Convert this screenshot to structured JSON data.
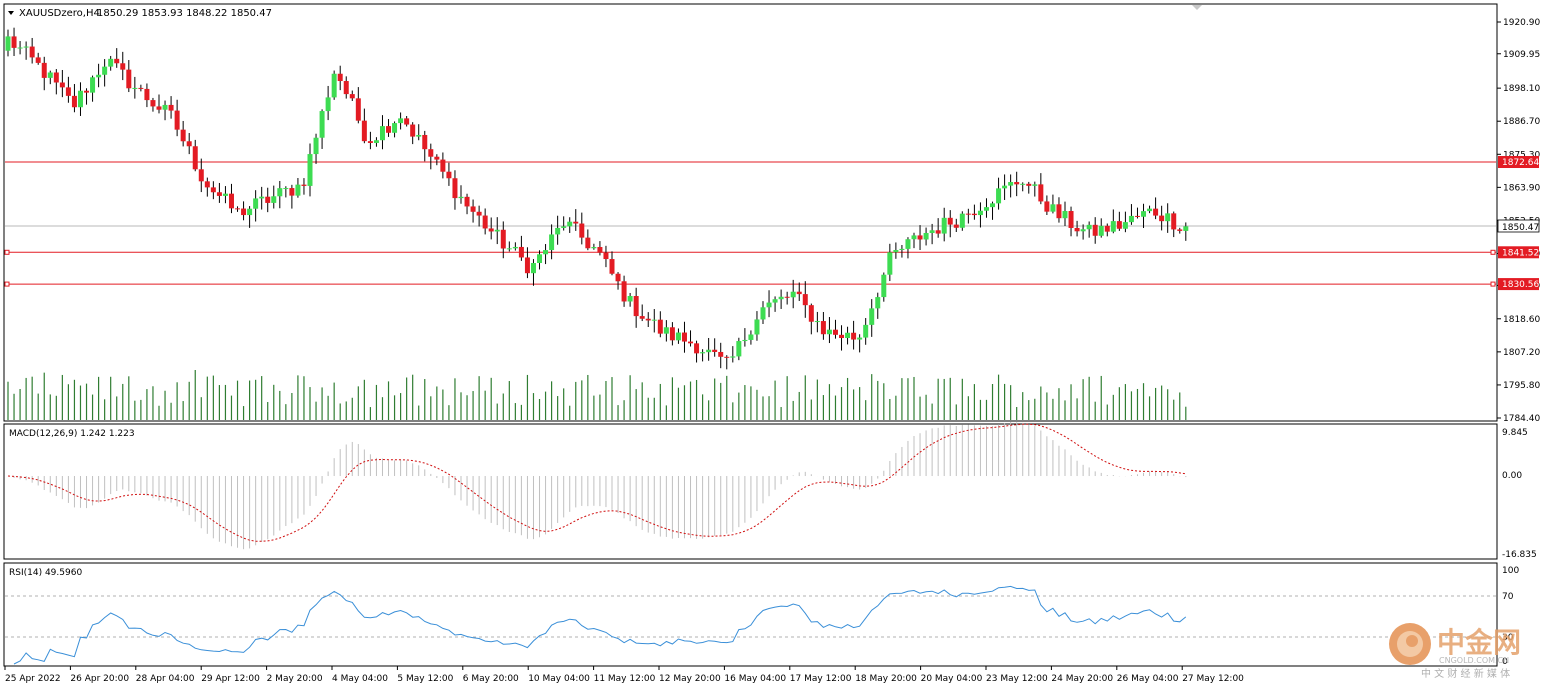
{
  "window": {
    "symbol_label": "XAUUSDzero,H4",
    "ohlc_label": "1850.29 1853.93 1848.22 1850.47",
    "menu_arrow_icon": "triangle-down-icon"
  },
  "price_axis": {
    "ticks": [
      "1920.90",
      "1909.95",
      "1898.10",
      "1886.70",
      "1875.30",
      "1863.90",
      "1852.50",
      "1841.10",
      "1830.10",
      "1818.60",
      "1807.20",
      "1795.80",
      "1784.40"
    ],
    "current_price": "1850.47",
    "levels": [
      "1872.64",
      "1841.52",
      "1830.56"
    ]
  },
  "time_axis": {
    "labels": [
      "25 Apr 2022",
      "26 Apr 20:00",
      "28 Apr 04:00",
      "29 Apr 12:00",
      "2 May 20:00",
      "4 May 04:00",
      "5 May 12:00",
      "6 May 20:00",
      "10 May 04:00",
      "11 May 12:00",
      "12 May 20:00",
      "16 May 04:00",
      "17 May 12:00",
      "18 May 20:00",
      "20 May 04:00",
      "23 May 12:00",
      "24 May 20:00",
      "26 May 04:00",
      "27 May 12:00"
    ]
  },
  "macd": {
    "label": "MACD(12,26,9) 1.242 1.223",
    "ticks": [
      "9.845",
      "0.00",
      "-16.835"
    ]
  },
  "rsi": {
    "label": "RSI(14) 49.5960",
    "ticks": [
      "100",
      "70",
      "30",
      "0"
    ]
  },
  "watermark": {
    "brand": "中金网",
    "url": "CNGOLD.COM.CN",
    "tagline": "中 文 财 经 新 媒 体"
  },
  "colors": {
    "bull": "#3ddc52",
    "bear": "#e31b23",
    "level": "#e31b23",
    "volume": "#2f7d32",
    "macd_hist": "#c0c0c0",
    "macd_signal": "#d01010",
    "rsi": "#3a8fd8"
  },
  "chart_data": [
    {
      "type": "candlestick",
      "title": "XAUUSDzero,H4",
      "ylim": [
        1784.4,
        1920.9
      ],
      "x": [
        "25 Apr 2022",
        "26 Apr 20:00",
        "28 Apr 04:00",
        "29 Apr 12:00",
        "2 May 20:00",
        "4 May 04:00",
        "5 May 12:00",
        "6 May 20:00",
        "10 May 04:00",
        "11 May 12:00",
        "12 May 20:00",
        "16 May 04:00",
        "17 May 12:00",
        "18 May 20:00",
        "20 May 04:00",
        "23 May 12:00",
        "24 May 20:00",
        "26 May 04:00",
        "27 May 12:00"
      ],
      "close_path": [
        1915,
        1905,
        1892,
        1908,
        1897,
        1888,
        1866,
        1855,
        1860,
        1865,
        1905,
        1880,
        1889,
        1873,
        1858,
        1846,
        1836,
        1852,
        1842,
        1824,
        1814,
        1810,
        1802,
        1822,
        1827,
        1814,
        1812,
        1840,
        1848,
        1853,
        1860,
        1867,
        1855,
        1848,
        1851,
        1856,
        1850
      ],
      "horizontal_levels": [
        1872.64,
        1841.52,
        1830.56
      ],
      "last_price": 1850.47
    },
    {
      "type": "line",
      "title": "MACD(12,26,9)",
      "ylim": [
        -16.835,
        9.845
      ],
      "main": 1.242,
      "signal": 1.223
    },
    {
      "type": "line",
      "title": "RSI(14)",
      "ylim": [
        0,
        100
      ],
      "levels": [
        30,
        70
      ],
      "last": 49.596
    }
  ]
}
